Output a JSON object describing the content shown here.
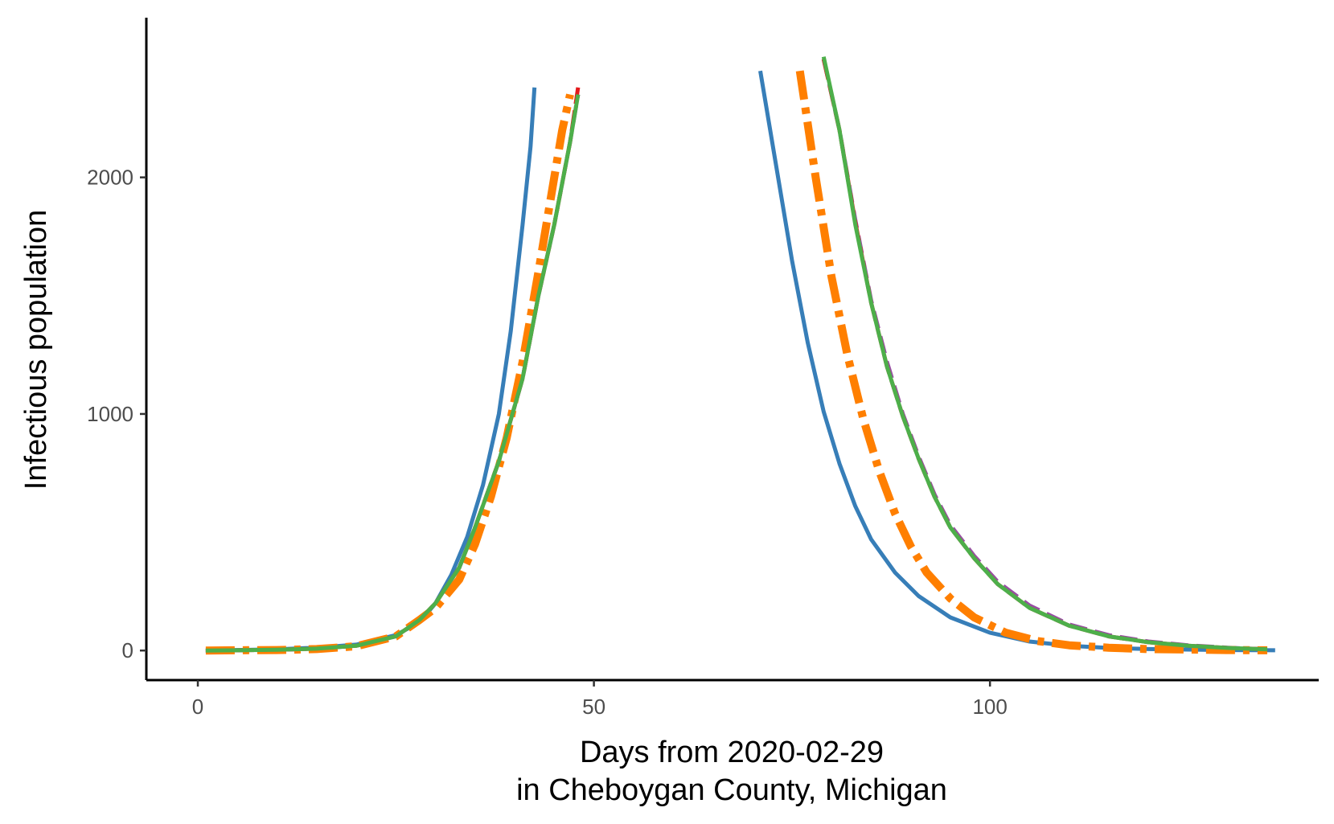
{
  "chart_data": {
    "type": "line",
    "title": "",
    "xlabel_line1": "Days from 2020-02-29",
    "xlabel_line2": "in Cheboygan County, Michigan",
    "ylabel": "Infectious population",
    "xlim": [
      -6.5,
      141.5
    ],
    "ylim": [
      -125,
      2675
    ],
    "x_ticks": [
      0,
      50,
      100
    ],
    "y_ticks": [
      0,
      1000,
      2000
    ],
    "x_tick_labels": [
      "0",
      "50",
      "100"
    ],
    "y_tick_labels": [
      "0",
      "1000",
      "2000"
    ],
    "legend": "none",
    "series": [
      {
        "name": "blue-solid",
        "color": "#377EB8",
        "dash": "solid",
        "segments": [
          [
            [
              1,
              0
            ],
            [
              5,
              2
            ],
            [
              10,
              5
            ],
            [
              15,
              12
            ],
            [
              20,
              25
            ],
            [
              25,
              65
            ],
            [
              28,
              120
            ],
            [
              30,
              200
            ],
            [
              32,
              320
            ],
            [
              34,
              480
            ],
            [
              36,
              700
            ],
            [
              38,
              1000
            ],
            [
              39.5,
              1350
            ],
            [
              41,
              1800
            ],
            [
              42,
              2130
            ],
            [
              42.5,
              2380
            ]
          ],
          [
            [
              71,
              2450
            ],
            [
              73,
              2050
            ],
            [
              75,
              1650
            ],
            [
              77,
              1300
            ],
            [
              79,
              1010
            ],
            [
              81,
              790
            ],
            [
              83,
              610
            ],
            [
              85,
              470
            ],
            [
              88,
              330
            ],
            [
              91,
              230
            ],
            [
              95,
              140
            ],
            [
              100,
              75
            ],
            [
              105,
              38
            ],
            [
              110,
              20
            ],
            [
              115,
              11
            ],
            [
              120,
              6
            ],
            [
              130,
              2
            ],
            [
              136,
              1
            ]
          ]
        ]
      },
      {
        "name": "purple-dashed",
        "color": "#984EA3",
        "dash": "22 10",
        "segments": [
          [
            [
              1,
              0
            ],
            [
              5,
              1
            ],
            [
              10,
              3
            ],
            [
              15,
              8
            ],
            [
              20,
              20
            ],
            [
              25,
              60
            ],
            [
              28,
              130
            ],
            [
              30,
              200
            ],
            [
              33,
              350
            ],
            [
              35,
              520
            ],
            [
              38,
              800
            ],
            [
              41,
              1150
            ],
            [
              43,
              1500
            ],
            [
              45,
              1800
            ],
            [
              47,
              2150
            ],
            [
              48,
              2350
            ]
          ],
          [
            [
              79,
              2500
            ],
            [
              81,
              2200
            ],
            [
              83,
              1820
            ],
            [
              85,
              1480
            ],
            [
              87,
              1220
            ],
            [
              89,
              1000
            ],
            [
              91,
              820
            ],
            [
              93,
              660
            ],
            [
              95,
              530
            ],
            [
              98,
              400
            ],
            [
              101,
              290
            ],
            [
              105,
              190
            ],
            [
              110,
              110
            ],
            [
              115,
              65
            ],
            [
              120,
              38
            ],
            [
              125,
              22
            ],
            [
              130,
              12
            ],
            [
              135,
              5
            ]
          ]
        ]
      },
      {
        "name": "red-dashed",
        "color": "#E41A1C",
        "dash": "26 8",
        "segments": [
          [
            [
              1,
              0
            ],
            [
              5,
              1
            ],
            [
              10,
              3
            ],
            [
              15,
              8
            ],
            [
              20,
              20
            ],
            [
              25,
              60
            ],
            [
              28,
              130
            ],
            [
              30,
              200
            ],
            [
              33,
              350
            ],
            [
              35,
              520
            ],
            [
              38,
              800
            ],
            [
              41,
              1150
            ],
            [
              43,
              1500
            ],
            [
              45,
              1800
            ],
            [
              47,
              2150
            ],
            [
              48,
              2380
            ]
          ],
          [
            [
              79,
              2500
            ],
            [
              81,
              2200
            ],
            [
              83,
              1810
            ],
            [
              85,
              1470
            ],
            [
              87,
              1200
            ],
            [
              89,
              990
            ],
            [
              91,
              810
            ],
            [
              93,
              650
            ],
            [
              95,
              520
            ],
            [
              98,
              390
            ],
            [
              101,
              280
            ],
            [
              105,
              180
            ],
            [
              110,
              105
            ],
            [
              115,
              60
            ],
            [
              120,
              35
            ],
            [
              125,
              20
            ],
            [
              130,
              11
            ],
            [
              135,
              5
            ]
          ]
        ]
      },
      {
        "name": "orange-dotdash",
        "color": "#FF7F00",
        "dash": "36 10 8 10",
        "segments": [
          [
            [
              1,
              0
            ],
            [
              5,
              1
            ],
            [
              10,
              2
            ],
            [
              15,
              6
            ],
            [
              20,
              18
            ],
            [
              25,
              60
            ],
            [
              28,
              130
            ],
            [
              30,
              180
            ],
            [
              33,
              300
            ],
            [
              35,
              450
            ],
            [
              37,
              650
            ],
            [
              39,
              900
            ],
            [
              41,
              1220
            ],
            [
              43,
              1600
            ],
            [
              45,
              2000
            ],
            [
              46,
              2200
            ],
            [
              47,
              2350
            ]
          ],
          [
            [
              76,
              2450
            ],
            [
              78,
              2000
            ],
            [
              80,
              1580
            ],
            [
              82,
              1250
            ],
            [
              84,
              980
            ],
            [
              86,
              760
            ],
            [
              88,
              580
            ],
            [
              90,
              440
            ],
            [
              92,
              330
            ],
            [
              95,
              220
            ],
            [
              98,
              140
            ],
            [
              102,
              75
            ],
            [
              106,
              40
            ],
            [
              110,
              22
            ],
            [
              115,
              12
            ],
            [
              120,
              6
            ],
            [
              130,
              2
            ],
            [
              135,
              1
            ]
          ]
        ]
      },
      {
        "name": "green-solid",
        "color": "#4DAF4A",
        "dash": "solid",
        "segments": [
          [
            [
              1,
              0
            ],
            [
              5,
              1
            ],
            [
              10,
              3
            ],
            [
              15,
              8
            ],
            [
              20,
              20
            ],
            [
              25,
              60
            ],
            [
              28,
              130
            ],
            [
              30,
              200
            ],
            [
              33,
              350
            ],
            [
              35,
              520
            ],
            [
              38,
              800
            ],
            [
              41,
              1150
            ],
            [
              43,
              1500
            ],
            [
              45,
              1800
            ],
            [
              47,
              2150
            ],
            [
              48,
              2350
            ]
          ],
          [
            [
              79,
              2510
            ],
            [
              81,
              2200
            ],
            [
              83,
              1800
            ],
            [
              85,
              1470
            ],
            [
              87,
              1200
            ],
            [
              89,
              990
            ],
            [
              91,
              810
            ],
            [
              93,
              650
            ],
            [
              95,
              520
            ],
            [
              98,
              390
            ],
            [
              101,
              280
            ],
            [
              105,
              180
            ],
            [
              110,
              105
            ],
            [
              115,
              60
            ],
            [
              120,
              35
            ],
            [
              125,
              20
            ],
            [
              130,
              11
            ],
            [
              135,
              5
            ]
          ]
        ]
      }
    ]
  }
}
